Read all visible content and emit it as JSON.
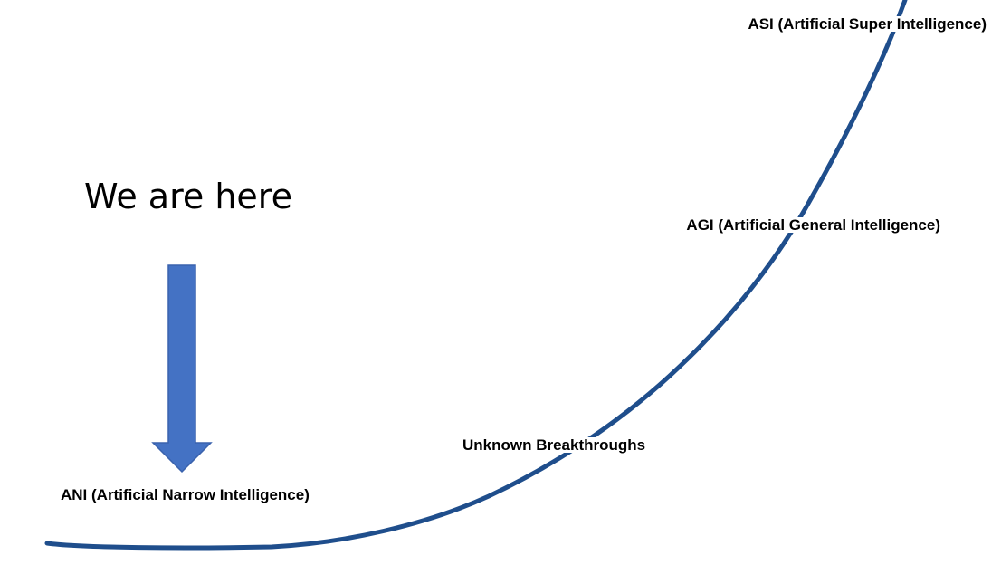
{
  "headline": {
    "text": "We are here"
  },
  "stages": {
    "asi": "ASI (Artificial Super Intelligence)",
    "agi": "AGI (Artificial General Intelligence)",
    "unknown": "Unknown Breakthroughs",
    "ani": "ANI (Artificial Narrow Intelligence)"
  },
  "colors": {
    "curve": "#1f4e8c",
    "arrow": "#4472c4",
    "arrow_outline": "#3a62ad",
    "text": "#000000",
    "background": "#ffffff"
  },
  "icons": {
    "pointer": "down-arrow-icon",
    "curve": "growth-curve"
  }
}
